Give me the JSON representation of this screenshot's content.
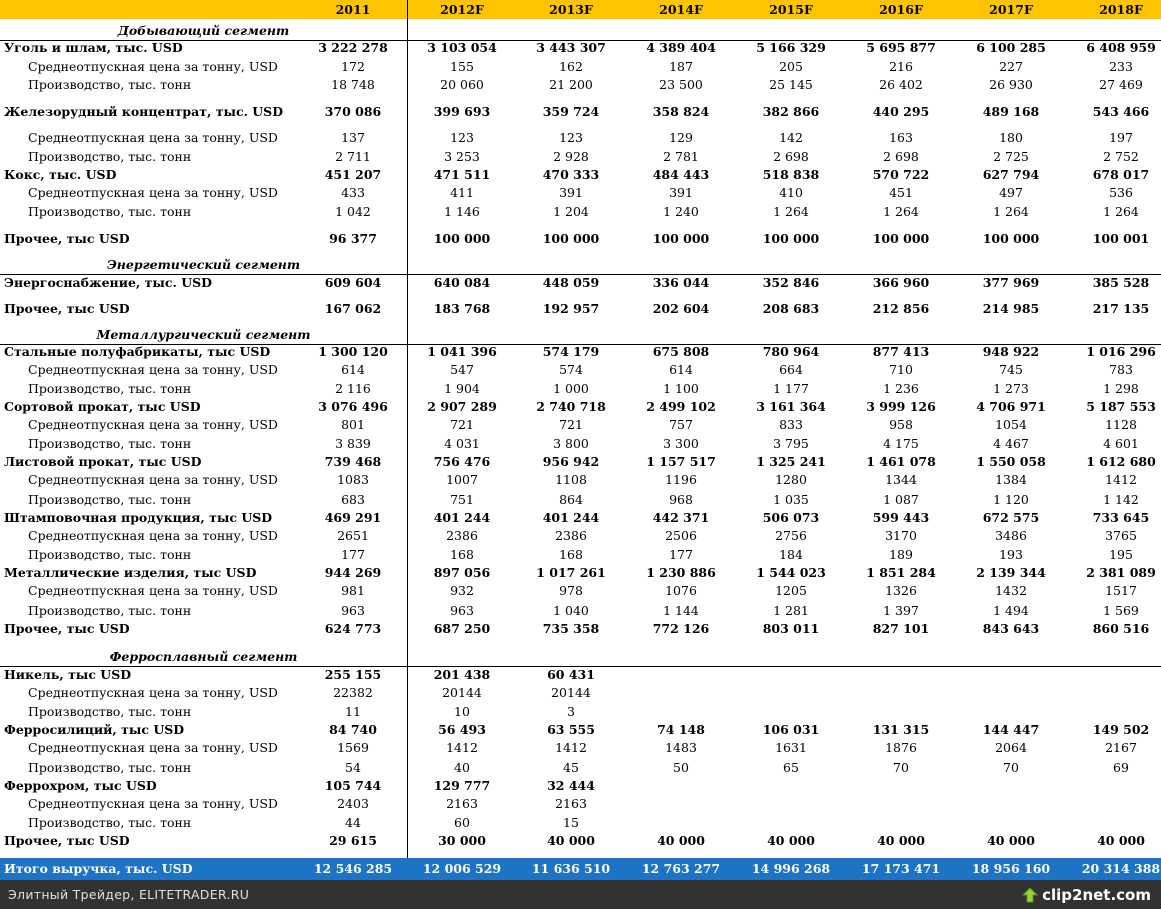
{
  "table": {
    "header": [
      "2011",
      "2012F",
      "2013F",
      "2014F",
      "2015F",
      "2016F",
      "2017F",
      "2018F"
    ],
    "rows": [
      {
        "type": "section",
        "label": "Добывающий сегмент"
      },
      {
        "type": "bold",
        "label": "Уголь и шлам, тыс. USD",
        "values": [
          "3 222 278",
          "3 103 054",
          "3 443 307",
          "4 389 404",
          "5 166 329",
          "5 695 877",
          "6 100 285",
          "6 408 959"
        ]
      },
      {
        "type": "sub",
        "label": "Среднеотпускная цена за тонну, USD",
        "values": [
          "172",
          "155",
          "162",
          "187",
          "205",
          "216",
          "227",
          "233"
        ]
      },
      {
        "type": "sub",
        "label": "Производство, тыс. тонн",
        "values": [
          "18 748",
          "20 060",
          "21 200",
          "23 500",
          "25 145",
          "26 402",
          "26 930",
          "27 469"
        ]
      },
      {
        "type": "bold",
        "label": "Железорудный концентрат, тыс. USD",
        "values": [
          "370 086",
          "399 693",
          "359 724",
          "358 824",
          "382 866",
          "440 295",
          "489 168",
          "543 466"
        ]
      },
      {
        "type": "sub",
        "label": "Среднеотпускная цена за тонну, USD",
        "values": [
          "137",
          "123",
          "123",
          "129",
          "142",
          "163",
          "180",
          "197"
        ]
      },
      {
        "type": "sub",
        "label": "Производство, тыс. тонн",
        "values": [
          "2 711",
          "3 253",
          "2 928",
          "2 781",
          "2 698",
          "2 698",
          "2 725",
          "2 752"
        ]
      },
      {
        "type": "bold",
        "label": "Кокс, тыс. USD",
        "values": [
          "451 207",
          "471 511",
          "470 333",
          "484 443",
          "518 838",
          "570 722",
          "627 794",
          "678 017"
        ]
      },
      {
        "type": "sub",
        "label": "Среднеотпускная цена за тонну, USD",
        "values": [
          "433",
          "411",
          "391",
          "391",
          "410",
          "451",
          "497",
          "536"
        ]
      },
      {
        "type": "sub",
        "label": "Производство, тыс. тонн",
        "values": [
          "1 042",
          "1 146",
          "1 204",
          "1 240",
          "1 264",
          "1 264",
          "1 264",
          "1 264"
        ]
      },
      {
        "type": "bold",
        "label": "Прочее, тыс USD",
        "values": [
          "96 377",
          "100 000",
          "100 000",
          "100 000",
          "100 000",
          "100 000",
          "100 000",
          "100 001"
        ]
      },
      {
        "type": "section",
        "label": "Энергетический сегмент"
      },
      {
        "type": "bold",
        "label": "Энергоснабжение, тыс. USD",
        "values": [
          "609 604",
          "640 084",
          "448 059",
          "336 044",
          "352 846",
          "366 960",
          "377 969",
          "385 528"
        ]
      },
      {
        "type": "bold",
        "label": "Прочее, тыс USD",
        "values": [
          "167 062",
          "183 768",
          "192 957",
          "202 604",
          "208 683",
          "212 856",
          "214 985",
          "217 135"
        ]
      },
      {
        "type": "section",
        "label": "Металлургический сегмент"
      },
      {
        "type": "bold",
        "label": "Стальные полуфабрикаты, тыс USD",
        "values": [
          "1 300 120",
          "1 041 396",
          "574 179",
          "675 808",
          "780 964",
          "877 413",
          "948 922",
          "1 016 296"
        ]
      },
      {
        "type": "sub",
        "label": "Среднеотпускная цена за тонну, USD",
        "values": [
          "614",
          "547",
          "574",
          "614",
          "664",
          "710",
          "745",
          "783"
        ]
      },
      {
        "type": "sub",
        "label": "Производство, тыс. тонн",
        "values": [
          "2 116",
          "1 904",
          "1 000",
          "1 100",
          "1 177",
          "1 236",
          "1 273",
          "1 298"
        ]
      },
      {
        "type": "bold",
        "label": "Сортовой прокат, тыс USD",
        "values": [
          "3 076 496",
          "2 907 289",
          "2 740 718",
          "2 499 102",
          "3 161 364",
          "3 999 126",
          "4 706 971",
          "5 187 553"
        ]
      },
      {
        "type": "sub",
        "label": "Среднеотпускная цена за тонну, USD",
        "values": [
          "801",
          "721",
          "721",
          "757",
          "833",
          "958",
          "1054",
          "1128"
        ]
      },
      {
        "type": "sub",
        "label": "Производство, тыс. тонн",
        "values": [
          "3 839",
          "4 031",
          "3 800",
          "3 300",
          "3 795",
          "4 175",
          "4 467",
          "4 601"
        ]
      },
      {
        "type": "bold",
        "label": "Листовой прокат, тыс USD",
        "values": [
          "739 468",
          "756 476",
          "956 942",
          "1 157 517",
          "1 325 241",
          "1 461 078",
          "1 550 058",
          "1 612 680"
        ]
      },
      {
        "type": "sub",
        "label": "Среднеотпускная цена за тонну, USD",
        "values": [
          "1083",
          "1007",
          "1108",
          "1196",
          "1280",
          "1344",
          "1384",
          "1412"
        ]
      },
      {
        "type": "sub",
        "label": "Производство, тыс. тонн",
        "values": [
          "683",
          "751",
          "864",
          "968",
          "1 035",
          "1 087",
          "1 120",
          "1 142"
        ]
      },
      {
        "type": "bold",
        "label": "Штамповочная продукция, тыс USD",
        "values": [
          "469 291",
          "401 244",
          "401 244",
          "442 371",
          "506 073",
          "599 443",
          "672 575",
          "733 645"
        ]
      },
      {
        "type": "sub",
        "label": "Среднеотпускная цена за тонну, USD",
        "values": [
          "2651",
          "2386",
          "2386",
          "2506",
          "2756",
          "3170",
          "3486",
          "3765"
        ]
      },
      {
        "type": "sub",
        "label": "Производство, тыс. тонн",
        "values": [
          "177",
          "168",
          "168",
          "177",
          "184",
          "189",
          "193",
          "195"
        ]
      },
      {
        "type": "bold",
        "label": "Металлические изделия, тыс USD",
        "values": [
          "944 269",
          "897 056",
          "1 017 261",
          "1 230 886",
          "1 544 023",
          "1 851 284",
          "2 139 344",
          "2 381 089"
        ]
      },
      {
        "type": "sub",
        "label": "Среднеотпускная цена за тонну, USD",
        "values": [
          "981",
          "932",
          "978",
          "1076",
          "1205",
          "1326",
          "1432",
          "1517"
        ]
      },
      {
        "type": "sub",
        "label": "Производство, тыс. тонн",
        "values": [
          "963",
          "963",
          "1 040",
          "1 144",
          "1 281",
          "1 397",
          "1 494",
          "1 569"
        ]
      },
      {
        "type": "bold",
        "label": "Прочее, тыс USD",
        "values": [
          "624 773",
          "687 250",
          "735 358",
          "772 126",
          "803 011",
          "827 101",
          "843 643",
          "860 516"
        ]
      },
      {
        "type": "section",
        "label": "Ферросплавный сегмент"
      },
      {
        "type": "bold",
        "label": "Никель, тыс USD",
        "values": [
          "255 155",
          "201 438",
          "60 431",
          "",
          "",
          "",
          "",
          ""
        ]
      },
      {
        "type": "sub",
        "label": "Среднеотпускная цена за тонну, USD",
        "values": [
          "22382",
          "20144",
          "20144",
          "",
          "",
          "",
          "",
          ""
        ]
      },
      {
        "type": "sub",
        "label": "Производство, тыс. тонн",
        "values": [
          "11",
          "10",
          "3",
          "",
          "",
          "",
          "",
          ""
        ]
      },
      {
        "type": "bold",
        "label": "Ферросилиций, тыс USD",
        "values": [
          "84 740",
          "56 493",
          "63 555",
          "74 148",
          "106 031",
          "131 315",
          "144 447",
          "149 502"
        ]
      },
      {
        "type": "sub",
        "label": "Среднеотпускная цена за тонну, USD",
        "values": [
          "1569",
          "1412",
          "1412",
          "1483",
          "1631",
          "1876",
          "2064",
          "2167"
        ]
      },
      {
        "type": "sub",
        "label": "Производство, тыс. тонн",
        "values": [
          "54",
          "40",
          "45",
          "50",
          "65",
          "70",
          "70",
          "69"
        ]
      },
      {
        "type": "bold",
        "label": "Феррохром, тыс USD",
        "values": [
          "105 744",
          "129 777",
          "32 444",
          "",
          "",
          "",
          "",
          ""
        ]
      },
      {
        "type": "sub",
        "label": "Среднеотпускная цена за тонну, USD",
        "values": [
          "2403",
          "2163",
          "2163",
          "",
          "",
          "",
          "",
          ""
        ]
      },
      {
        "type": "sub",
        "label": "Производство, тыс. тонн",
        "values": [
          "44",
          "60",
          "15",
          "",
          "",
          "",
          "",
          ""
        ]
      },
      {
        "type": "bold",
        "label": "Прочее, тыс USD",
        "values": [
          "29 615",
          "30 000",
          "40 000",
          "40 000",
          "40 000",
          "40 000",
          "40 000",
          "40 000"
        ]
      }
    ],
    "total": {
      "label": "Итого выручка, тыс. USD",
      "values": [
        "12 546 285",
        "12 006 529",
        "11 636 510",
        "12 763 277",
        "14 996 268",
        "17 173 471",
        "18 956 160",
        "20 314 388"
      ]
    }
  },
  "footer": {
    "caption": "Элитный Трейдер, ELITETRADER.RU",
    "logo": "clip2net.com",
    "logo_icon": "arrow-up-icon"
  }
}
